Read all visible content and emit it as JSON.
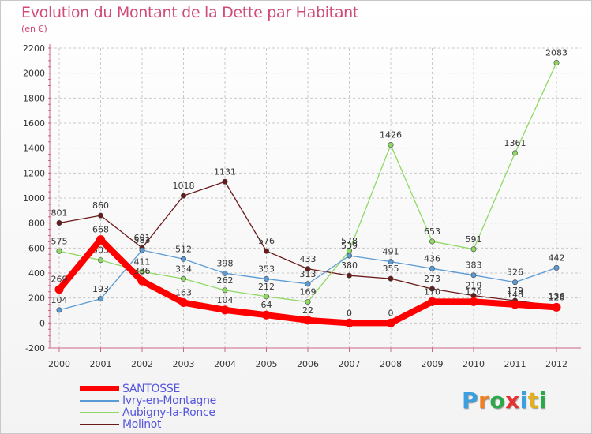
{
  "chart_data": {
    "type": "line",
    "title": "Evolution du Montant de la Dette par Habitant",
    "subtitle": "(en €)",
    "xlabel": "",
    "ylabel": "",
    "categories": [
      "2000",
      "2001",
      "2002",
      "2003",
      "2004",
      "2005",
      "2006",
      "2007",
      "2008",
      "2009",
      "2010",
      "2011",
      "2012"
    ],
    "ylim": [
      -200,
      2200
    ],
    "yticks": [
      -200,
      0,
      200,
      400,
      600,
      800,
      1000,
      1200,
      1400,
      1600,
      1800,
      2000,
      2200
    ],
    "grid": true,
    "legend_position": "bottom-left",
    "series": [
      {
        "name": "SANTOSSE",
        "color": "#ff0000",
        "values": [
          269,
          668,
          336,
          163,
          104,
          64,
          22,
          0,
          0,
          170,
          170,
          148,
          126
        ]
      },
      {
        "name": "Ivry-en-Montagne",
        "color": "#5b9bd5",
        "values": [
          104,
          193,
          583,
          512,
          398,
          353,
          313,
          539,
          491,
          436,
          383,
          326,
          442
        ]
      },
      {
        "name": "Aubigny-la-Ronce",
        "color": "#8ed863",
        "values": [
          575,
          503,
          411,
          354,
          262,
          212,
          169,
          578,
          1426,
          653,
          591,
          1361,
          2083
        ]
      },
      {
        "name": "Molinot",
        "color": "#6b1a1a",
        "values": [
          801,
          860,
          601,
          1018,
          1131,
          576,
          433,
          380,
          355,
          273,
          219,
          179,
          136
        ]
      }
    ]
  },
  "logo": {
    "letters": [
      "P",
      "r",
      "o",
      "x",
      "i",
      "t",
      "i"
    ],
    "colors": [
      "#3aa0e0",
      "#f08020",
      "#2aa84a",
      "#e83030",
      "#3aa0e0",
      "#e0b020",
      "#2aa84a"
    ]
  }
}
